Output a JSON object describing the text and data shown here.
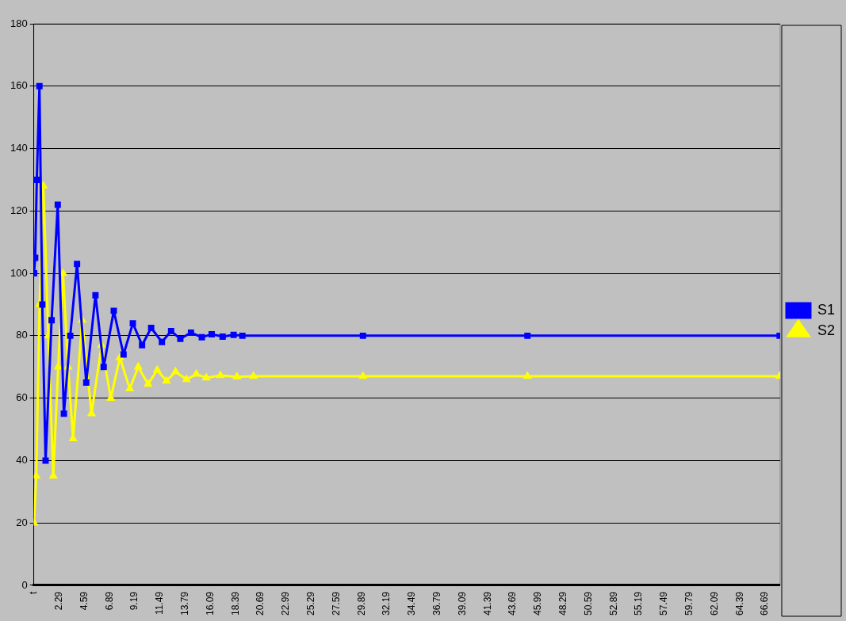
{
  "chart_data": {
    "type": "line",
    "xlim": [
      -0.02,
      68.05
    ],
    "ylim": [
      0,
      180
    ],
    "xticks": [
      {
        "value": -0.01,
        "label": "t"
      },
      2.29,
      4.59,
      6.89,
      9.19,
      11.49,
      13.79,
      16.09,
      18.39,
      20.69,
      22.99,
      25.29,
      27.59,
      29.89,
      32.19,
      34.49,
      36.79,
      39.09,
      41.39,
      43.69,
      45.99,
      48.29,
      50.59,
      52.89,
      55.19,
      57.49,
      59.79,
      62.09,
      64.39,
      66.69
    ],
    "yticks": [
      0,
      20,
      40,
      60,
      80,
      100,
      120,
      140,
      160,
      180
    ],
    "grid": "y",
    "legend": "right",
    "series": [
      {
        "name": "S1",
        "color": "#0000ff",
        "marker": "square",
        "x": [
          0,
          0.1,
          0.25,
          0.49,
          0.75,
          1.05,
          1.6,
          2.16,
          2.72,
          3.3,
          3.92,
          4.76,
          5.6,
          6.35,
          7.27,
          8.16,
          9.01,
          9.85,
          10.68,
          11.66,
          12.5,
          13.34,
          14.31,
          15.3,
          16.2,
          17.2,
          18.2,
          19,
          30,
          45,
          68
        ],
        "values": [
          100,
          105,
          130,
          160,
          90,
          40,
          85,
          122,
          55,
          80,
          103,
          65,
          93,
          70,
          88,
          74,
          84,
          77,
          82.5,
          78,
          81.5,
          79,
          81,
          79.5,
          80.5,
          79.7,
          80.3,
          80,
          80,
          80,
          80
        ]
      },
      {
        "name": "S2",
        "color": "#ffff00",
        "marker": "triangle",
        "x": [
          0,
          0.2,
          0.5,
          0.85,
          1.3,
          1.75,
          2.2,
          2.64,
          3.1,
          3.56,
          4.39,
          5.24,
          6.16,
          7,
          7.83,
          8.73,
          9.5,
          10.4,
          11.23,
          12.08,
          12.9,
          13.9,
          14.8,
          15.7,
          17,
          18.5,
          20,
          30,
          45,
          68
        ],
        "values": [
          20,
          35,
          90,
          128,
          80,
          35,
          70,
          100,
          70,
          47,
          85,
          55,
          77,
          60,
          73,
          63,
          70,
          64.5,
          69,
          65.5,
          68.5,
          66,
          67.7,
          66.5,
          67.3,
          66.8,
          67,
          67,
          67,
          67
        ]
      }
    ]
  }
}
